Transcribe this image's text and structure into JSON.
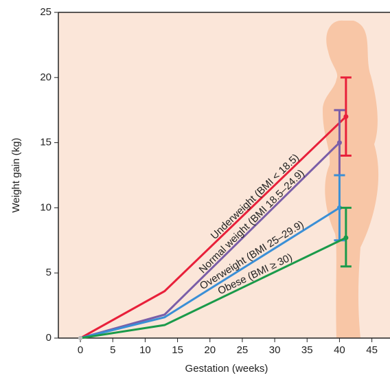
{
  "chart_data": {
    "type": "line",
    "x_label": "Gestation (weeks)",
    "y_label": "Weight gain (kg)",
    "xlim": [
      -3.4,
      47.8
    ],
    "ylim": [
      0,
      25
    ],
    "xticks": [
      0,
      5,
      10,
      15,
      20,
      25,
      30,
      35,
      40,
      45
    ],
    "yticks": [
      0,
      5,
      10,
      15,
      20,
      25
    ],
    "series": [
      {
        "name": "Underweight (BMI < 18.5)",
        "color": "#e8203a",
        "x": [
          0,
          13,
          41
        ],
        "values": [
          0,
          3.6,
          17
        ],
        "error_x": 41,
        "error_range": [
          14,
          20
        ]
      },
      {
        "name": "Normal weight (BMI 18.5–24.9)",
        "color": "#7a5ea8",
        "x": [
          0,
          13,
          40
        ],
        "values": [
          0,
          1.8,
          15
        ],
        "error_x": 40,
        "error_range": [
          12.5,
          17.5
        ]
      },
      {
        "name": "Overweight (BMI 25–29.9)",
        "color": "#3a8fd6",
        "x": [
          0,
          13,
          40
        ],
        "values": [
          0,
          1.6,
          10
        ],
        "error_x": 40,
        "error_range": [
          7.5,
          12.5
        ]
      },
      {
        "name": "Obese (BMI ≥ 30)",
        "color": "#1a9a4a",
        "x": [
          0,
          13,
          41
        ],
        "values": [
          0,
          1,
          7.7
        ],
        "error_x": 41,
        "error_range": [
          5.5,
          10
        ]
      }
    ]
  }
}
